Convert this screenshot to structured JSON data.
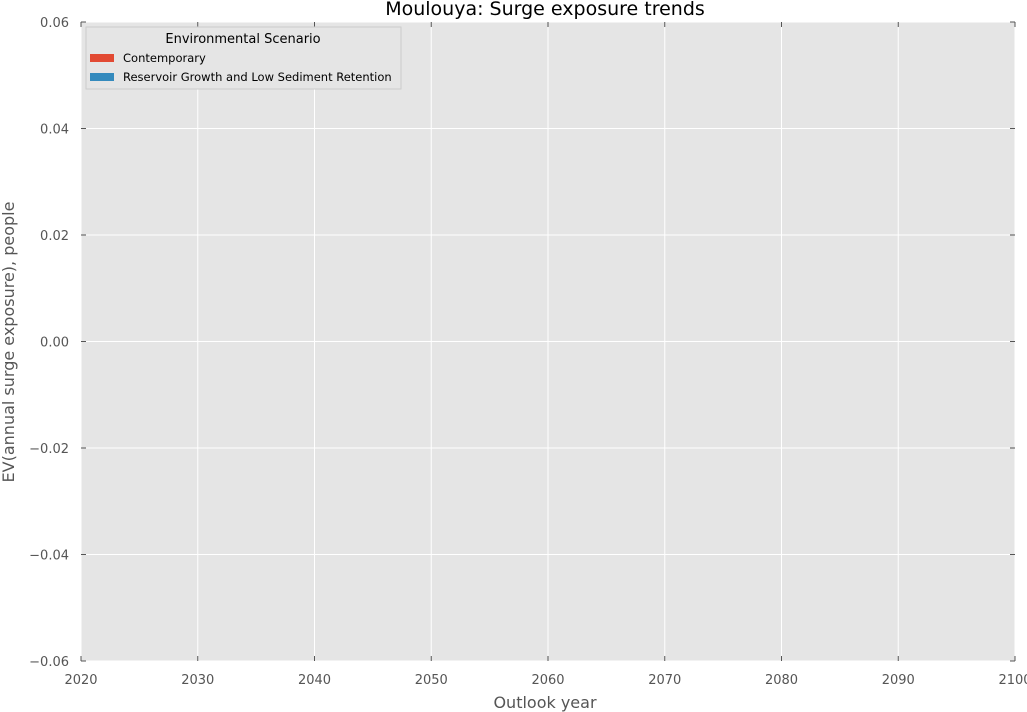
{
  "chart_data": {
    "type": "area",
    "title": "Moulouya: Surge exposure trends",
    "xlabel": "Outlook year",
    "ylabel": "EV(annual surge exposure), people",
    "xlim": [
      2020,
      2100
    ],
    "ylim": [
      -0.06,
      0.06
    ],
    "x_ticks": [
      "2020",
      "2030",
      "2040",
      "2050",
      "2060",
      "2070",
      "2080",
      "2090",
      "2100"
    ],
    "y_ticks": [
      "0.06",
      "0.04",
      "0.02",
      "0.00",
      "−0.02",
      "−0.04",
      "−0.06"
    ],
    "grid": true,
    "legend": {
      "title": "Environmental Scenario",
      "placement": "top-left",
      "entries": [
        {
          "name": "Contemporary",
          "color": "#E24A33"
        },
        {
          "name": "Reservoir Growth and Low Sediment Retention",
          "color": "#348ABD"
        }
      ]
    },
    "series": [
      {
        "name": "Contemporary",
        "color": "#E24A33",
        "values": []
      },
      {
        "name": "Reservoir Growth and Low Sediment Retention",
        "color": "#348ABD",
        "values": []
      }
    ],
    "colors": {
      "plot_background": "#E5E5E5",
      "grid": "#FFFFFF",
      "tick_text": "#555555"
    }
  }
}
